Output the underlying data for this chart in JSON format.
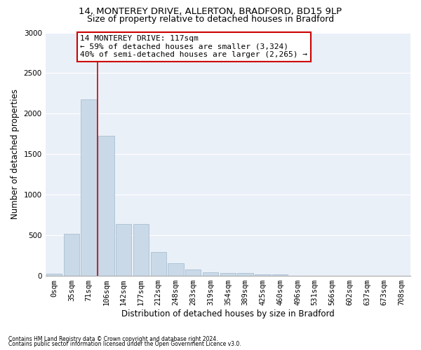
{
  "title1": "14, MONTEREY DRIVE, ALLERTON, BRADFORD, BD15 9LP",
  "title2": "Size of property relative to detached houses in Bradford",
  "xlabel": "Distribution of detached houses by size in Bradford",
  "ylabel": "Number of detached properties",
  "footnote1": "Contains HM Land Registry data © Crown copyright and database right 2024.",
  "footnote2": "Contains public sector information licensed under the Open Government Licence v3.0.",
  "bin_labels": [
    "0sqm",
    "35sqm",
    "71sqm",
    "106sqm",
    "142sqm",
    "177sqm",
    "212sqm",
    "248sqm",
    "283sqm",
    "319sqm",
    "354sqm",
    "389sqm",
    "425sqm",
    "460sqm",
    "496sqm",
    "531sqm",
    "566sqm",
    "602sqm",
    "637sqm",
    "673sqm",
    "708sqm"
  ],
  "bar_values": [
    25,
    520,
    2180,
    1730,
    640,
    640,
    295,
    155,
    80,
    45,
    35,
    35,
    20,
    20,
    5,
    5,
    2,
    2,
    0,
    0,
    0
  ],
  "bar_color": "#c9d9e8",
  "bar_edge_color": "#a0b8cc",
  "vline_x_index": 3,
  "vline_color": "#cc0000",
  "annotation_text": "14 MONTEREY DRIVE: 117sqm\n← 59% of detached houses are smaller (3,324)\n40% of semi-detached houses are larger (2,265) →",
  "annotation_box_color": "#ffffff",
  "annotation_box_edge_color": "#cc0000",
  "ylim": [
    0,
    3000
  ],
  "yticks": [
    0,
    500,
    1000,
    1500,
    2000,
    2500,
    3000
  ],
  "plot_bg_color": "#eaf0f8",
  "title1_fontsize": 9.5,
  "title2_fontsize": 9,
  "xlabel_fontsize": 8.5,
  "ylabel_fontsize": 8.5,
  "annotation_fontsize": 8,
  "tick_fontsize": 7.5
}
